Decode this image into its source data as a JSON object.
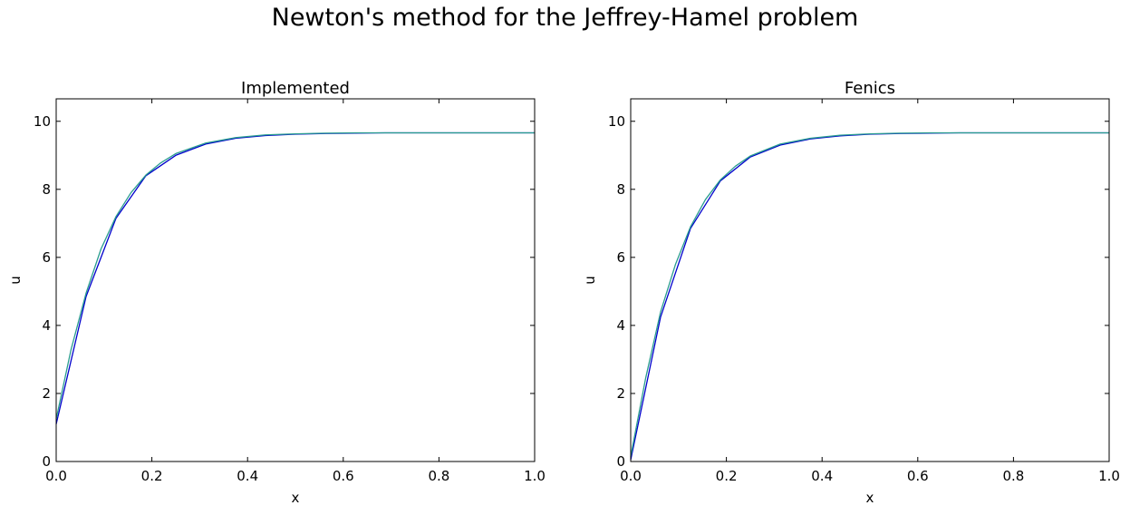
{
  "figure": {
    "suptitle": "Newton's method for the Jeffrey-Hamel problem"
  },
  "chart_data": [
    {
      "type": "line",
      "title": "Implemented",
      "xlabel": "x",
      "ylabel": "u",
      "xlim": [
        0.0,
        1.0
      ],
      "ylim": [
        0,
        10.66
      ],
      "xticks": [
        "0.0",
        "0.2",
        "0.4",
        "0.6",
        "0.8",
        "1.0"
      ],
      "yticks": [
        "0",
        "2",
        "4",
        "6",
        "8",
        "10"
      ],
      "grid": false,
      "series": [
        {
          "color": "#0000cc",
          "x": [
            0.0,
            0.0625,
            0.125,
            0.1875,
            0.25,
            0.3125,
            0.375,
            0.4375,
            0.5,
            0.5625,
            0.625,
            0.6875,
            0.75,
            0.8125,
            0.875,
            0.9375,
            1.0
          ],
          "y": [
            1.1,
            4.85,
            7.15,
            8.4,
            9.0,
            9.33,
            9.5,
            9.58,
            9.62,
            9.64,
            9.65,
            9.66,
            9.66,
            9.66,
            9.66,
            9.66,
            9.66
          ]
        },
        {
          "color": "#2a9d8f",
          "x": [
            0.0,
            0.03125,
            0.0625,
            0.09375,
            0.125,
            0.15625,
            0.1875,
            0.21875,
            0.25,
            0.3125,
            0.375,
            0.4375,
            0.5,
            0.5625,
            0.625,
            0.6875,
            0.75,
            0.8125,
            0.875,
            0.9375,
            1.0
          ],
          "y": [
            1.25,
            3.3,
            4.95,
            6.25,
            7.2,
            7.9,
            8.42,
            8.78,
            9.05,
            9.36,
            9.52,
            9.6,
            9.63,
            9.65,
            9.66,
            9.66,
            9.66,
            9.66,
            9.66,
            9.66,
            9.66
          ]
        }
      ]
    },
    {
      "type": "line",
      "title": "Fenics",
      "xlabel": "x",
      "ylabel": "u",
      "xlim": [
        0.0,
        1.0
      ],
      "ylim": [
        0,
        10.66
      ],
      "xticks": [
        "0.0",
        "0.2",
        "0.4",
        "0.6",
        "0.8",
        "1.0"
      ],
      "yticks": [
        "0",
        "2",
        "4",
        "6",
        "8",
        "10"
      ],
      "grid": false,
      "series": [
        {
          "color": "#0000cc",
          "x": [
            0.0,
            0.0625,
            0.125,
            0.1875,
            0.25,
            0.3125,
            0.375,
            0.4375,
            0.5,
            0.5625,
            0.625,
            0.6875,
            0.75,
            0.8125,
            0.875,
            0.9375,
            1.0
          ],
          "y": [
            0.05,
            4.25,
            6.85,
            8.25,
            8.95,
            9.3,
            9.48,
            9.57,
            9.62,
            9.64,
            9.65,
            9.66,
            9.66,
            9.66,
            9.66,
            9.66,
            9.66
          ]
        },
        {
          "color": "#2a9d8f",
          "x": [
            0.0,
            0.03125,
            0.0625,
            0.09375,
            0.125,
            0.15625,
            0.1875,
            0.21875,
            0.25,
            0.3125,
            0.375,
            0.4375,
            0.5,
            0.5625,
            0.625,
            0.6875,
            0.75,
            0.8125,
            0.875,
            0.9375,
            1.0
          ],
          "y": [
            0.15,
            2.45,
            4.4,
            5.8,
            6.9,
            7.7,
            8.28,
            8.68,
            8.98,
            9.33,
            9.5,
            9.59,
            9.63,
            9.65,
            9.66,
            9.66,
            9.66,
            9.66,
            9.66,
            9.66,
            9.66
          ]
        }
      ]
    }
  ]
}
